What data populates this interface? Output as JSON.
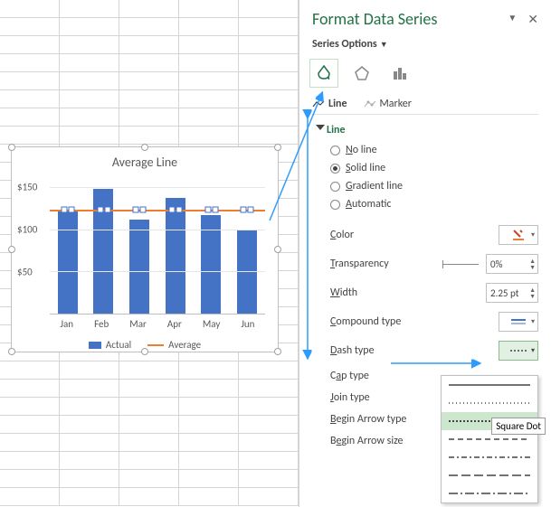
{
  "pane": {
    "title": "Format Data Series",
    "subtitle": "Series Options",
    "tabs": {
      "line": "Line",
      "marker": "Marker"
    },
    "section": "Line",
    "radios": {
      "r1": {
        "pre": "N",
        "post": "o line"
      },
      "r2": {
        "pre": "S",
        "post": "olid line"
      },
      "r3": {
        "pre": "G",
        "post": "radient line"
      },
      "r4": {
        "pre": "A",
        "post": "utomatic"
      }
    },
    "props": {
      "color": {
        "pre": "C",
        "post": "olor"
      },
      "transparency": {
        "pre": "T",
        "post": "ransparency",
        "value": "0%"
      },
      "width": {
        "pre": "W",
        "post": "idth",
        "value": "2.25 pt"
      },
      "compound": {
        "pre": "C",
        "post": "ompound type"
      },
      "dash": {
        "pre": "D",
        "post": "ash type"
      },
      "cap": {
        "pre": "",
        "post": "Cap type",
        "u": "a"
      },
      "join": {
        "pre": "J",
        "post": "oin type"
      },
      "beginType": {
        "pre": "B",
        "post": "egin Arrow type"
      },
      "beginSize": {
        "post": "egin Arrow size",
        "upre": "B"
      }
    },
    "tooltip": "Square Dot"
  },
  "chart": {
    "title": "Average Line",
    "categories": [
      "Jan",
      "Feb",
      "Mar",
      "Apr",
      "May",
      "Jun"
    ],
    "values": [
      122,
      148,
      112,
      138,
      117,
      100
    ],
    "avg_value": 123,
    "ymax": 160,
    "y_ticks": [
      {
        "v": 50,
        "label": "$50"
      },
      {
        "v": 100,
        "label": "$100"
      },
      {
        "v": 150,
        "label": "$150"
      }
    ],
    "bar_color": "#4472c4",
    "line_color": "#ed7d31",
    "legend": {
      "actual": "Actual",
      "average": "Average"
    }
  }
}
